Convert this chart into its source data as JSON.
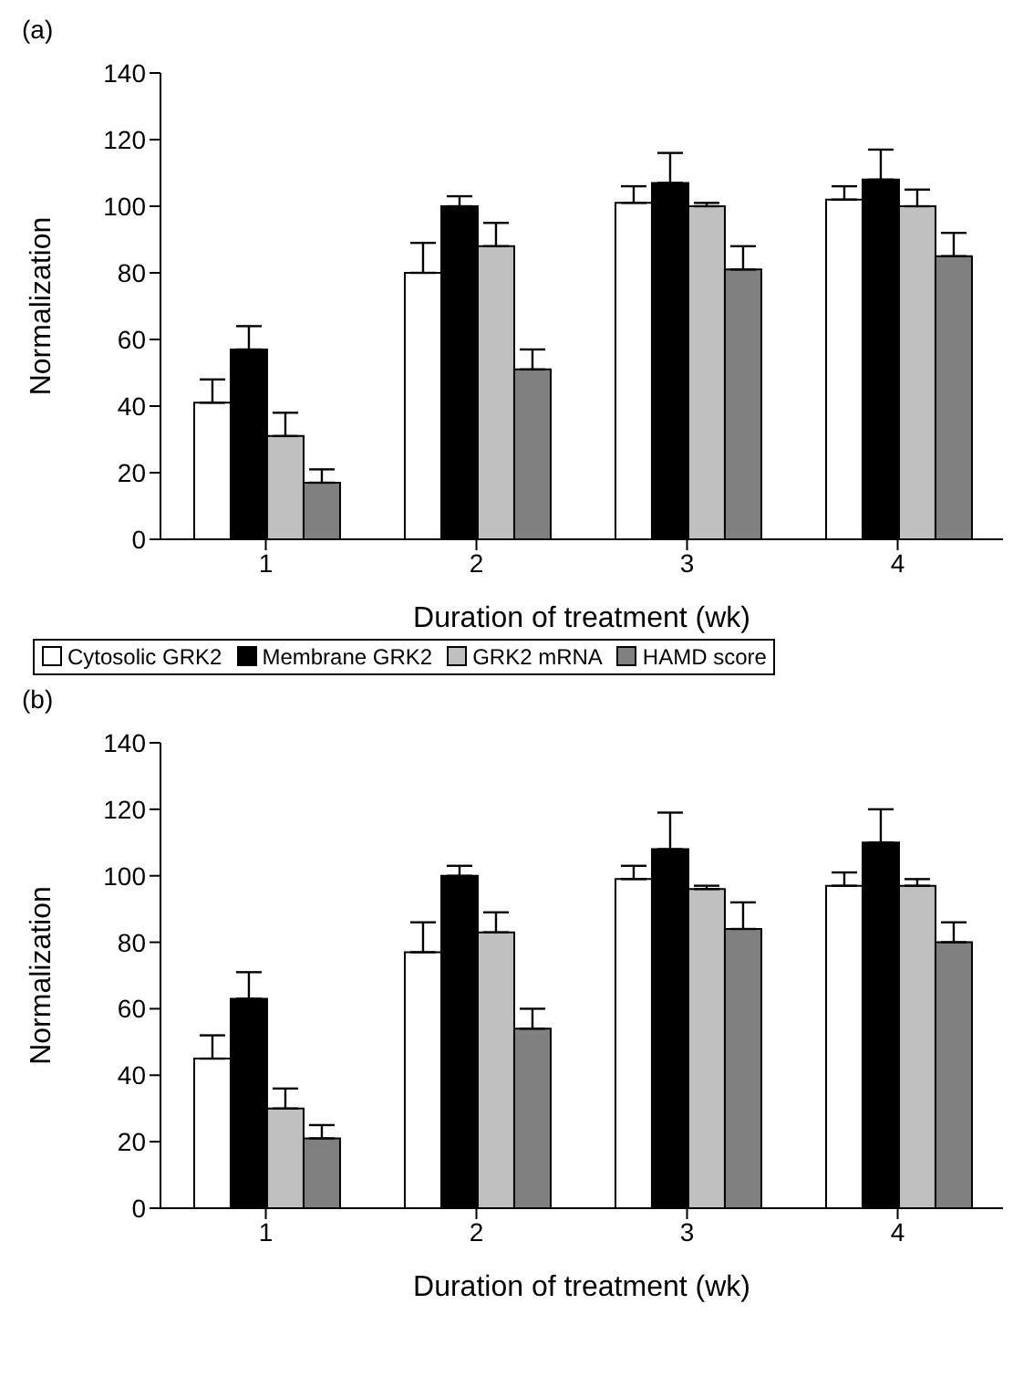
{
  "chart_data": [
    {
      "type": "bar",
      "title": "(a)",
      "xlabel": "Duration of treatment (wk)",
      "ylabel": "Normalization",
      "categories": [
        "1",
        "2",
        "3",
        "4"
      ],
      "ylim": [
        0,
        140
      ],
      "yticks": [
        0,
        20,
        40,
        60,
        80,
        100,
        120,
        140
      ],
      "grid": false,
      "legend": "bottom",
      "series": [
        {
          "name": "Cytosolic GRK2",
          "color": "#ffffff",
          "values": [
            41,
            80,
            101,
            102
          ],
          "errors": [
            [
              41,
              48
            ],
            [
              80,
              89
            ],
            [
              101,
              106
            ],
            [
              102,
              106
            ]
          ]
        },
        {
          "name": "Membrane GRK2",
          "color": "#000000",
          "values": [
            57,
            100,
            107,
            108
          ],
          "errors": [
            [
              57,
              64
            ],
            [
              100,
              103
            ],
            [
              107,
              116
            ],
            [
              108,
              117
            ]
          ]
        },
        {
          "name": "GRK2 mRNA",
          "color": "#c0c0c0",
          "values": [
            31,
            88,
            100,
            100
          ],
          "errors": [
            [
              31,
              38
            ],
            [
              88,
              95
            ],
            [
              100,
              101
            ],
            [
              100,
              105
            ]
          ]
        },
        {
          "name": "HAMD score",
          "color": "#808080",
          "values": [
            17,
            51,
            81,
            85
          ],
          "errors": [
            [
              17,
              21
            ],
            [
              51,
              57
            ],
            [
              81,
              88
            ],
            [
              85,
              92
            ]
          ]
        }
      ]
    },
    {
      "type": "bar",
      "title": "(b)",
      "xlabel": "Duration of treatment (wk)",
      "ylabel": "Normalization",
      "categories": [
        "1",
        "2",
        "3",
        "4"
      ],
      "ylim": [
        0,
        140
      ],
      "yticks": [
        0,
        20,
        40,
        60,
        80,
        100,
        120,
        140
      ],
      "grid": false,
      "series": [
        {
          "color": "#ffffff",
          "values": [
            45,
            77,
            99,
            97
          ],
          "errors": [
            [
              45,
              52
            ],
            [
              77,
              86
            ],
            [
              99,
              103
            ],
            [
              97,
              101
            ]
          ]
        },
        {
          "color": "#000000",
          "values": [
            63,
            100,
            108,
            110
          ],
          "errors": [
            [
              63,
              71
            ],
            [
              100,
              103
            ],
            [
              108,
              119
            ],
            [
              110,
              120
            ]
          ]
        },
        {
          "color": "#c0c0c0",
          "values": [
            30,
            83,
            96,
            97
          ],
          "errors": [
            [
              30,
              36
            ],
            [
              83,
              89
            ],
            [
              96,
              97
            ],
            [
              97,
              99
            ]
          ]
        },
        {
          "color": "#808080",
          "values": [
            21,
            54,
            84,
            80
          ],
          "errors": [
            [
              21,
              25
            ],
            [
              54,
              60
            ],
            [
              84,
              92
            ],
            [
              80,
              86
            ]
          ]
        }
      ]
    }
  ]
}
